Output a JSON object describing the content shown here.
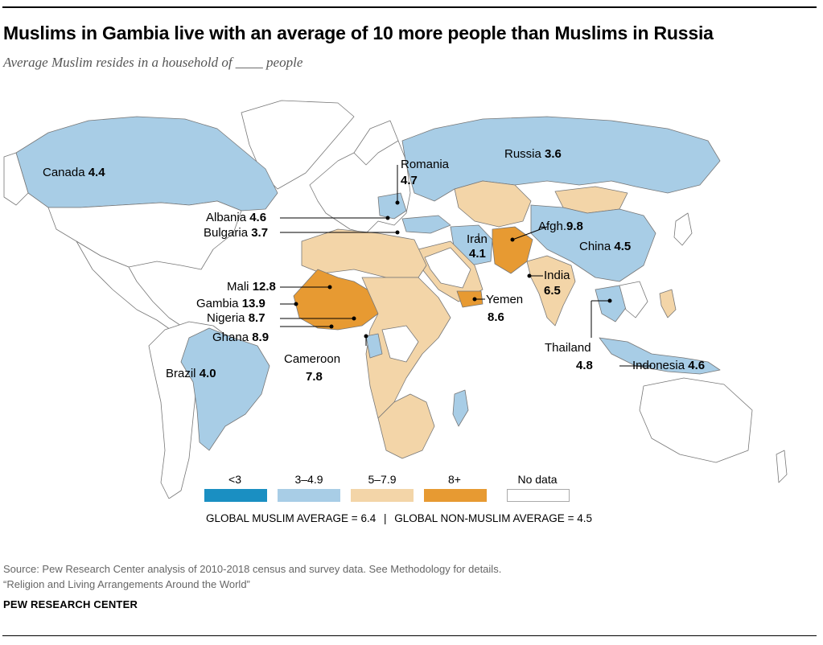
{
  "title": "Muslims in Gambia live with an average of 10 more people than Muslims in Russia",
  "subtitle": "Average Muslim resides in a household of ____ people",
  "colors": {
    "lt3": "#1a8fc2",
    "c3to49": "#a8cde6",
    "c5to79": "#f3d5a8",
    "c8plus": "#e79a32",
    "nodata": "#ffffff",
    "land_outline": "#777777"
  },
  "legend": {
    "categories": [
      {
        "label": "<3",
        "color_key": "lt3"
      },
      {
        "label": "3–4.9",
        "color_key": "c3to49"
      },
      {
        "label": "5–7.9",
        "color_key": "c5to79"
      },
      {
        "label": "8+",
        "color_key": "c8plus"
      },
      {
        "label": "No data",
        "color_key": "nodata"
      }
    ]
  },
  "averages": {
    "muslim": "GLOBAL MUSLIM AVERAGE = 6.4",
    "separator": "|",
    "non_muslim": "GLOBAL NON-MUSLIM AVERAGE = 4.5"
  },
  "countries": [
    {
      "name": "Canada",
      "value": "4.4"
    },
    {
      "name": "Romania",
      "value": "4.7"
    },
    {
      "name": "Russia",
      "value": "3.6"
    },
    {
      "name": "Albania",
      "value": "4.6"
    },
    {
      "name": "Bulgaria",
      "value": "3.7"
    },
    {
      "name": "Iran",
      "value": "4.1"
    },
    {
      "name": "Afgh.",
      "value": "9.8"
    },
    {
      "name": "China",
      "value": "4.5"
    },
    {
      "name": "India",
      "value": "6.5"
    },
    {
      "name": "Mali",
      "value": "12.8"
    },
    {
      "name": "Gambia",
      "value": "13.9"
    },
    {
      "name": "Nigeria",
      "value": "8.7"
    },
    {
      "name": "Ghana",
      "value": "8.9"
    },
    {
      "name": "Yemen",
      "value": "8.6"
    },
    {
      "name": "Cameroon",
      "value": "7.8"
    },
    {
      "name": "Thailand",
      "value": "4.8"
    },
    {
      "name": "Indonesia",
      "value": "4.6"
    },
    {
      "name": "Brazil",
      "value": "4.0"
    }
  ],
  "source": "Source: Pew Research Center analysis of 2010-2018 census and survey data. See Methodology for details.",
  "report": "“Religion and Living Arrangements Around the World”",
  "org": "PEW RESEARCH CENTER"
}
